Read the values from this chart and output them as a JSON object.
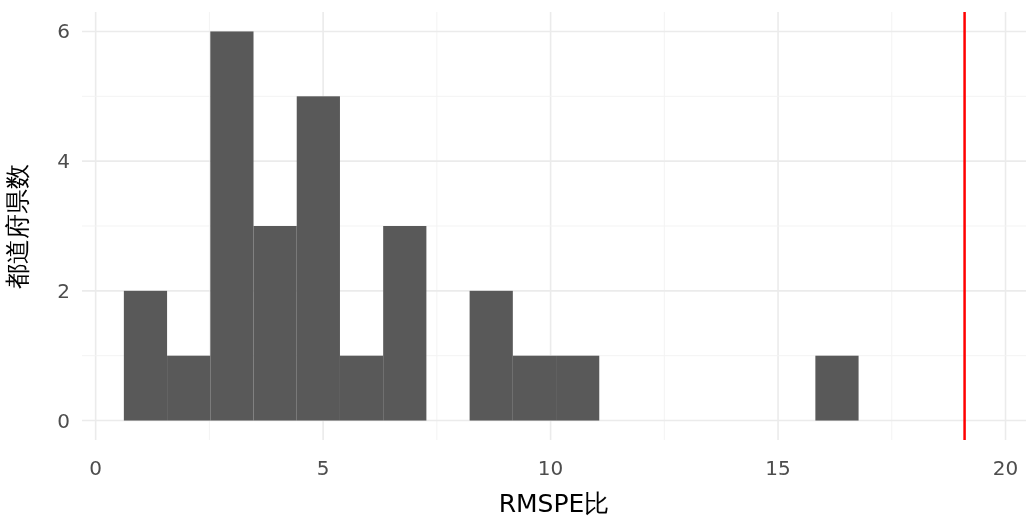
{
  "chart_data": {
    "type": "histogram",
    "xlabel": "RMSPE比",
    "ylabel": "都道府県数",
    "bins": [
      0.62,
      1.57,
      2.52,
      3.47,
      4.42,
      5.37,
      6.32,
      7.27,
      8.22,
      9.17,
      10.12,
      11.07,
      12.02,
      12.97,
      13.92,
      14.87,
      15.82,
      16.77
    ],
    "values": [
      2,
      1,
      6,
      3,
      5,
      1,
      3,
      0,
      2,
      1,
      1,
      0,
      0,
      0,
      0,
      0,
      1
    ],
    "color": "#595959",
    "xlim": [
      -0.3,
      20.45
    ],
    "ylim": [
      -0.3,
      6.3
    ],
    "xticks": [
      0,
      5,
      10,
      15,
      20
    ],
    "yticks": [
      0,
      2,
      4,
      6
    ],
    "grid": true,
    "ref_lines": [
      {
        "axis": "x",
        "value": 19.1,
        "color": "#ff0000"
      }
    ]
  }
}
